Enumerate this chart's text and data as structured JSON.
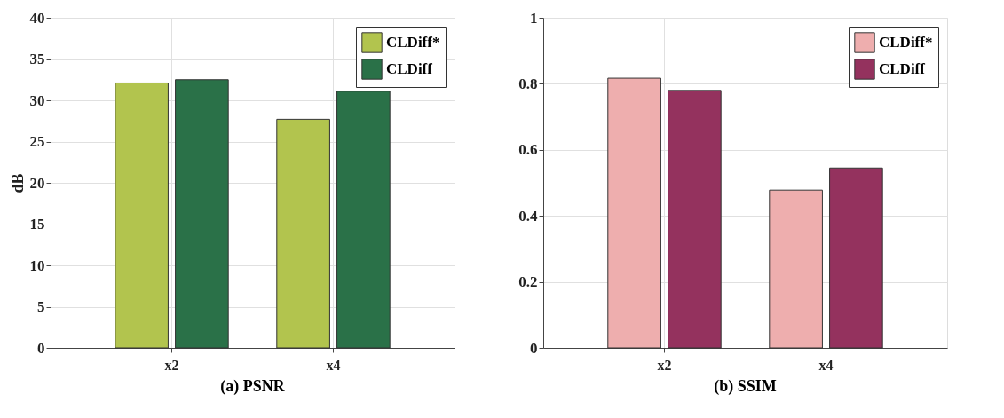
{
  "chart_data": [
    {
      "type": "bar",
      "title": "(a) PSNR",
      "ylabel": "dB",
      "categories": [
        "x2",
        "x4"
      ],
      "ylim": [
        0,
        40
      ],
      "yticks": [
        0,
        5,
        10,
        15,
        20,
        25,
        30,
        35,
        40
      ],
      "grid": true,
      "legend": "top right",
      "series": [
        {
          "name": "CLDiff*",
          "color": "#b2c44e",
          "values": [
            32.1,
            27.7
          ]
        },
        {
          "name": "CLDiff",
          "color": "#2a7148",
          "values": [
            32.5,
            31.1
          ]
        }
      ]
    },
    {
      "type": "bar",
      "title": "(b) SSIM",
      "categories": [
        "x2",
        "x4"
      ],
      "ylim": [
        0,
        1
      ],
      "yticks": [
        0,
        0.2,
        0.4,
        0.6,
        0.8,
        1
      ],
      "grid": true,
      "legend": "top right",
      "series": [
        {
          "name": "CLDiff*",
          "color": "#eeaeae",
          "values": [
            0.817,
            0.478
          ]
        },
        {
          "name": "CLDiff",
          "color": "#94325e",
          "values": [
            0.78,
            0.545
          ]
        }
      ]
    }
  ]
}
